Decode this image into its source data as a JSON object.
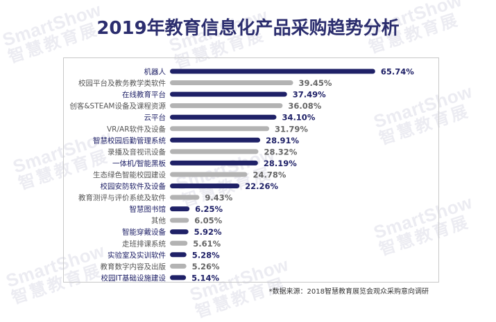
{
  "watermark": {
    "en": "SmartShow",
    "cn": "智慧教育展"
  },
  "title": "2019年教育信息化产品采购趋势分析",
  "source_note": "*数据来源：2018智慧教育展览会观众采购意向调研",
  "colors": {
    "highlight": "#1f2167",
    "normal": "#b3b3b3",
    "title": "#2b2d6e"
  },
  "chart_data": {
    "type": "bar",
    "orientation": "horizontal",
    "title": "2019年教育信息化产品采购趋势分析",
    "categories": [
      "机器人",
      "校园平台及教务教学类软件",
      "在线教育平台",
      "创客&STEAM设备及课程资源",
      "云平台",
      "VR/AR软件及设备",
      "智慧校园后勤管理系统",
      "录播及音视讯设备",
      "一体机/智能黑板",
      "生态绿色智能校园建设",
      "校园安防软件及设备",
      "教育测评与评价系统及软件",
      "智慧图书馆",
      "其他",
      "智能穿戴设备",
      "走班排课系统",
      "实验室及实训软件",
      "教育数字内容及出版",
      "校园IT基础设施建设"
    ],
    "values": [
      65.74,
      39.45,
      37.49,
      36.08,
      34.1,
      31.79,
      28.91,
      28.32,
      28.19,
      24.78,
      22.26,
      9.43,
      6.25,
      6.05,
      5.92,
      5.61,
      5.28,
      5.26,
      5.14
    ],
    "value_labels": [
      "65.74%",
      "39.45%",
      "37.49%",
      "36.08%",
      "34.10%",
      "31.79%",
      "28.91%",
      "28.32%",
      "28.19%",
      "24.78%",
      "22.26%",
      "9.43%",
      "6.25%",
      "6.05%",
      "5.92%",
      "5.61%",
      "5.28%",
      "5.26%",
      "5.14%"
    ],
    "highlighted": [
      true,
      false,
      true,
      false,
      true,
      false,
      true,
      false,
      true,
      false,
      true,
      false,
      true,
      false,
      true,
      false,
      true,
      false,
      true
    ],
    "xlim": [
      0,
      70
    ],
    "unit": "%"
  }
}
